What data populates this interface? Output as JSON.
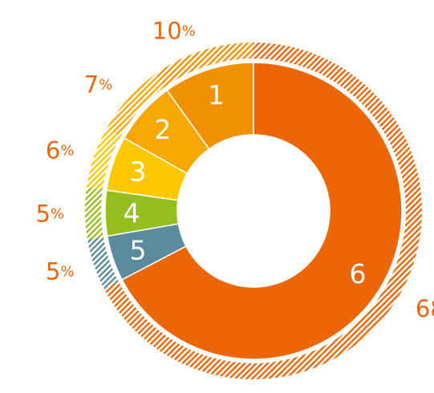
{
  "chart_data": {
    "type": "pie",
    "variant": "donut",
    "start": "12 o'clock",
    "direction": "counter-clockwise",
    "categories": [
      "1",
      "2",
      "3",
      "4",
      "5",
      "6"
    ],
    "values": [
      10,
      7,
      6,
      5,
      5,
      68
    ],
    "value_labels": [
      "10",
      "7",
      "6",
      "5",
      "5",
      "68"
    ],
    "unit": "%",
    "colors": [
      "#f29100",
      "#f6a800",
      "#fdc800",
      "#95bf1f",
      "#5b8b9c",
      "#ec6608"
    ],
    "outer_ring": "hatched",
    "percent_label_color": "#ec6608",
    "grid": false,
    "legend": "none"
  }
}
